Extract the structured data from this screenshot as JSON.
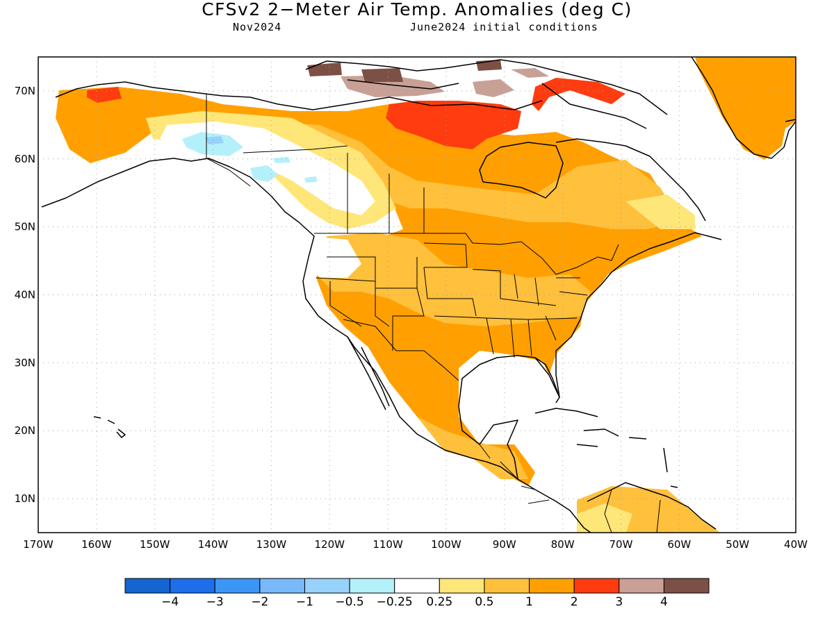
{
  "title": "CFSv2 2−Meter Air Temp. Anomalies (deg C)",
  "subtitle_left": "Nov2024",
  "subtitle_right": "June2024 initial conditions",
  "map": {
    "extent": {
      "lon": [
        -170,
        -40
      ],
      "lat": [
        5,
        75
      ]
    },
    "lon_ticks": [
      {
        "value": -170,
        "label": "170W"
      },
      {
        "value": -160,
        "label": "160W"
      },
      {
        "value": -150,
        "label": "150W"
      },
      {
        "value": -140,
        "label": "140W"
      },
      {
        "value": -130,
        "label": "130W"
      },
      {
        "value": -120,
        "label": "120W"
      },
      {
        "value": -110,
        "label": "110W"
      },
      {
        "value": -100,
        "label": "100W"
      },
      {
        "value": -90,
        "label": "90W"
      },
      {
        "value": -80,
        "label": "80W"
      },
      {
        "value": -70,
        "label": "70W"
      },
      {
        "value": -60,
        "label": "60W"
      },
      {
        "value": -50,
        "label": "50W"
      },
      {
        "value": -40,
        "label": "40W"
      }
    ],
    "lat_ticks": [
      {
        "value": 70,
        "label": "70N"
      },
      {
        "value": 60,
        "label": "60N"
      },
      {
        "value": 50,
        "label": "50N"
      },
      {
        "value": 40,
        "label": "40N"
      },
      {
        "value": 30,
        "label": "30N"
      },
      {
        "value": 20,
        "label": "20N"
      },
      {
        "value": 10,
        "label": "10N"
      }
    ]
  },
  "legend": {
    "colors": [
      "#1464d2",
      "#1e6eeb",
      "#3c96f5",
      "#78b9fa",
      "#96d2fa",
      "#b4f0fa",
      "#ffffff",
      "#ffe678",
      "#ffc03c",
      "#ffa000",
      "#ff3c0f",
      "#c8a096",
      "#7d5046"
    ],
    "labels": [
      "−4",
      "−3",
      "−2",
      "−1",
      "−0.5",
      "−0.25",
      "0.25",
      "0.5",
      "1",
      "2",
      "3",
      "4"
    ]
  }
}
